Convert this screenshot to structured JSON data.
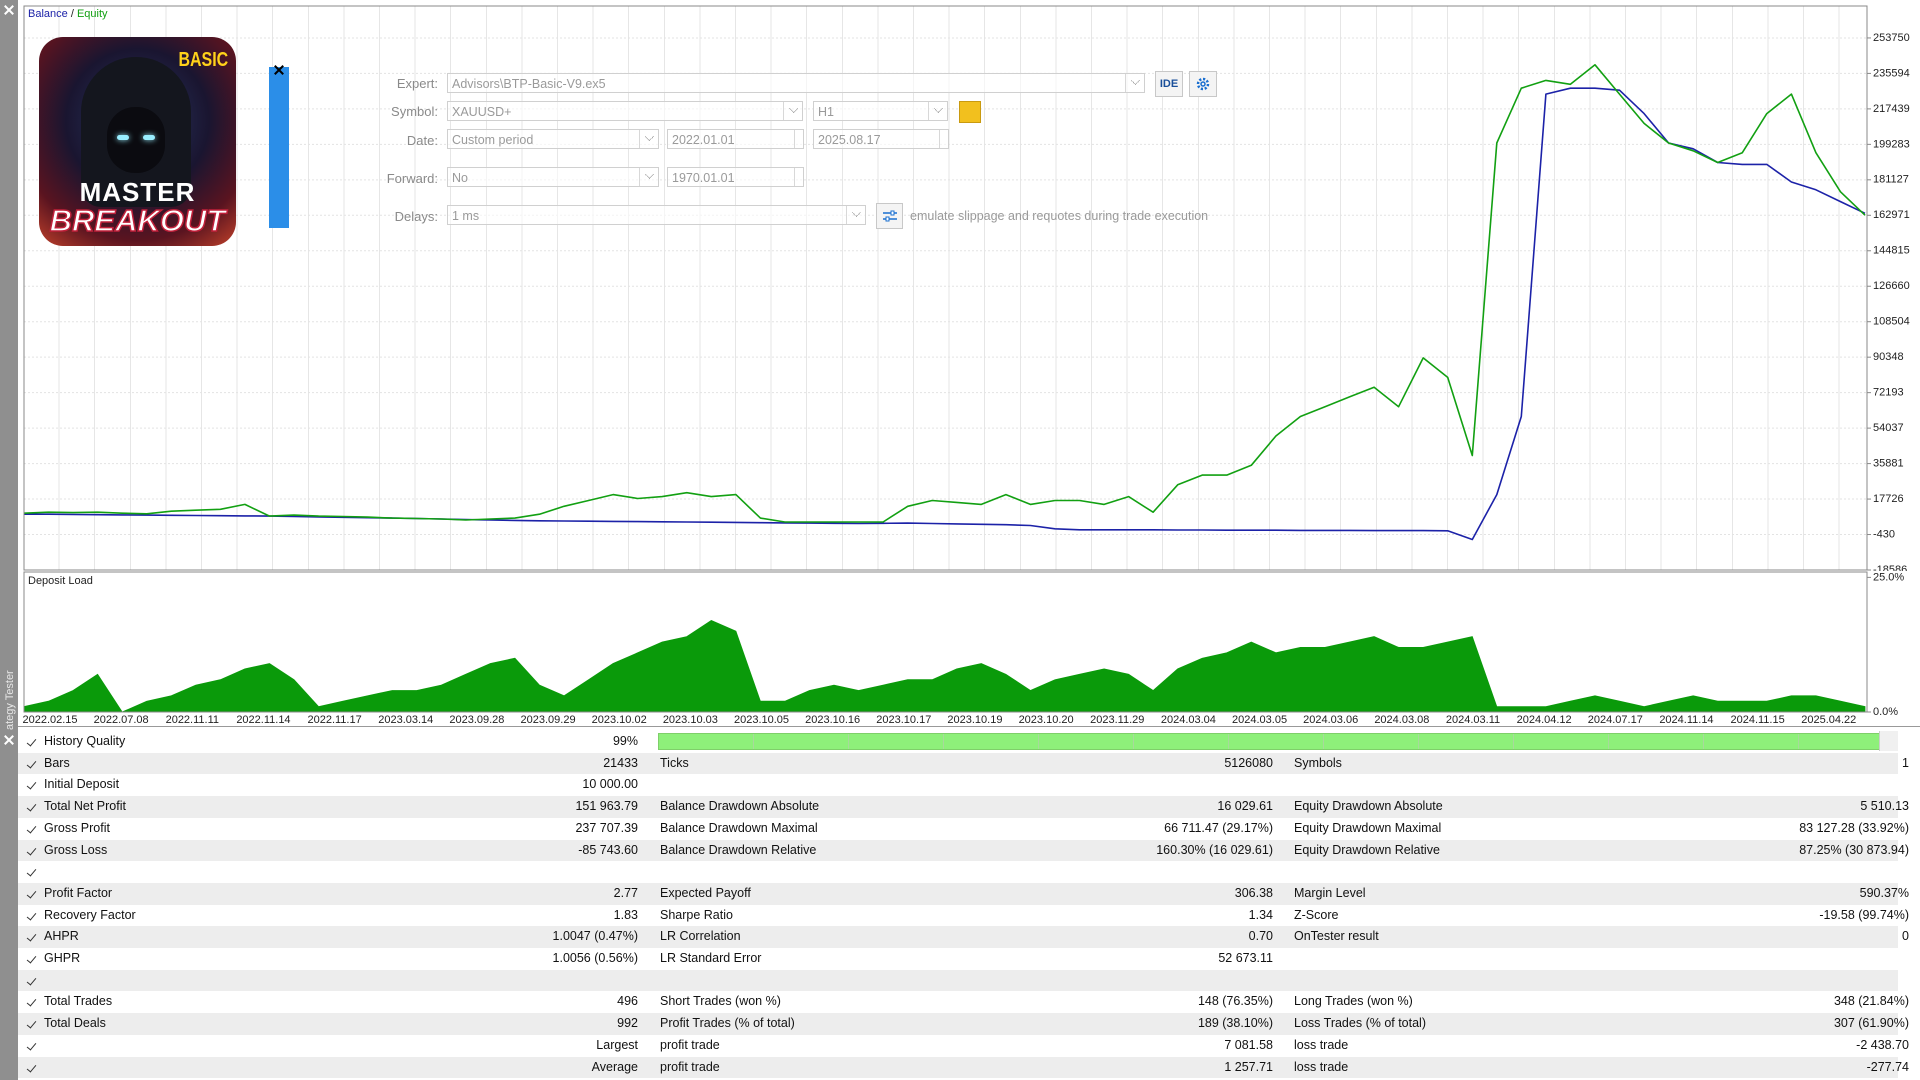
{
  "chart_data": [
    {
      "type": "line",
      "legend_separator": "/",
      "series": [
        {
          "name": "Balance",
          "color": "#1c22a8",
          "values": [
            10000,
            10000,
            9800,
            9700,
            9600,
            9500,
            9400,
            9300,
            9200,
            9100,
            9000,
            8800,
            8600,
            8400,
            8200,
            8000,
            7800,
            7500,
            7200,
            7000,
            6800,
            6600,
            6500,
            6400,
            6300,
            6200,
            6100,
            6000,
            5900,
            5800,
            5600,
            5500,
            5400,
            5300,
            5200,
            5300,
            5400,
            5200,
            5000,
            4800,
            4600,
            4200,
            2500,
            2000,
            2000,
            2000,
            2000,
            1900,
            1900,
            1800,
            1800,
            1800,
            1700,
            1700,
            1700,
            1600,
            1600,
            1600,
            1500,
            -3000,
            20000,
            60000,
            225000,
            228000,
            228000,
            227000,
            215000,
            200000,
            197000,
            190000,
            189000,
            189000,
            180000,
            176000,
            170000,
            164000
          ]
        },
        {
          "name": "Equity",
          "color": "#12a012",
          "values": [
            10500,
            11000,
            10800,
            11000,
            10500,
            10200,
            11500,
            12000,
            12500,
            15000,
            9000,
            9500,
            9000,
            8800,
            8500,
            8000,
            7800,
            7500,
            7000,
            7500,
            8000,
            10000,
            14000,
            17000,
            20000,
            18000,
            19000,
            21000,
            19000,
            20000,
            8000,
            6000,
            6000,
            6000,
            6000,
            6000,
            14000,
            17000,
            16000,
            15000,
            20000,
            15000,
            17000,
            17000,
            15000,
            19000,
            11000,
            25000,
            30000,
            30000,
            35000,
            50000,
            60000,
            65000,
            70000,
            75000,
            65000,
            90000,
            80000,
            40000,
            200000,
            228000,
            232000,
            230000,
            240000,
            225000,
            210000,
            200000,
            196000,
            190000,
            195000,
            215000,
            225000,
            195000,
            175000,
            163000
          ]
        }
      ],
      "ylim": [
        -18586,
        270100
      ],
      "yticks": [
        253750,
        235594,
        217439,
        199283,
        181127,
        162971,
        144815,
        126660,
        108504,
        90348,
        72193,
        54037,
        35881,
        17726,
        -430,
        -18586
      ],
      "grid": true
    },
    {
      "type": "area",
      "title": "Deposit Load",
      "color": "#0a9a0a",
      "values": [
        1,
        2,
        4,
        7,
        0,
        2,
        3,
        5,
        6,
        8,
        9,
        6,
        1,
        2,
        3,
        4,
        4,
        5,
        7,
        9,
        10,
        5,
        3,
        6,
        9,
        11,
        13,
        14,
        17,
        15,
        2,
        2,
        4,
        5,
        4,
        5,
        6,
        6,
        8,
        9,
        7,
        4,
        6,
        7,
        8,
        7,
        4,
        8,
        10,
        11,
        13,
        11,
        12,
        12,
        13,
        14,
        12,
        12,
        13,
        14,
        1,
        1,
        1,
        2,
        3,
        2,
        1,
        2,
        3,
        2,
        2,
        2,
        3,
        3,
        2,
        1
      ],
      "ylim": [
        0,
        26
      ],
      "yticks": [
        {
          "value": 25,
          "label": "25.0%"
        },
        {
          "value": 0,
          "label": "0.0%"
        }
      ],
      "xtick_labels": [
        "2022.02.15",
        "2022.07.08",
        "2022.11.11",
        "2022.11.14",
        "2022.11.17",
        "2023.03.14",
        "2023.09.28",
        "2023.09.29",
        "2023.10.02",
        "2023.10.03",
        "2023.10.05",
        "2023.10.16",
        "2023.10.17",
        "2023.10.19",
        "2023.10.20",
        "2023.11.29",
        "2024.03.04",
        "2024.03.05",
        "2024.03.06",
        "2024.03.08",
        "2024.03.11",
        "2024.04.12",
        "2024.07.17",
        "2024.11.14",
        "2024.11.15",
        "2025.04.22"
      ]
    }
  ],
  "sidebar": "ategy Tester",
  "logo": {
    "badge": "BASIC",
    "line1": "MASTER",
    "line2": "BREAKOUT"
  },
  "settings": {
    "expert": {
      "label": "Expert:",
      "value": "Advisors\\BTP-Basic-V9.ex5"
    },
    "ide_button": "IDE",
    "symbol": {
      "label": "Symbol:",
      "value": "XAUUSD+",
      "period": "H1"
    },
    "date": {
      "label": "Date:",
      "mode": "Custom period",
      "from": "2022.01.01",
      "to": "2025.08.17"
    },
    "forward": {
      "label": "Forward:",
      "mode": "No",
      "date": "1970.01.01"
    },
    "delays": {
      "label": "Delays:",
      "value": "1 ms",
      "note": "emulate slippage and requotes during trade execution"
    }
  },
  "table": {
    "rows": [
      [
        "History Quality",
        "99%"
      ],
      [
        "Bars",
        "21433",
        "Ticks",
        "5126080",
        "Symbols",
        "1"
      ],
      [
        "Initial Deposit",
        "10 000.00"
      ],
      [
        "Total Net Profit",
        "151 963.79",
        "Balance Drawdown Absolute",
        "16 029.61",
        "Equity Drawdown Absolute",
        "5 510.13"
      ],
      [
        "Gross Profit",
        "237 707.39",
        "Balance Drawdown Maximal",
        "66 711.47 (29.17%)",
        "Equity Drawdown Maximal",
        "83 127.28 (33.92%)"
      ],
      [
        "Gross Loss",
        "-85 743.60",
        "Balance Drawdown Relative",
        "160.30% (16 029.61)",
        "Equity Drawdown Relative",
        "87.25% (30 873.94)"
      ],
      [],
      [
        "Profit Factor",
        "2.77",
        "Expected Payoff",
        "306.38",
        "Margin Level",
        "590.37%"
      ],
      [
        "Recovery Factor",
        "1.83",
        "Sharpe Ratio",
        "1.34",
        "Z-Score",
        "-19.58 (99.74%)"
      ],
      [
        "AHPR",
        "1.0047 (0.47%)",
        "LR Correlation",
        "0.70",
        "OnTester result",
        "0"
      ],
      [
        "GHPR",
        "1.0056 (0.56%)",
        "LR Standard Error",
        "52 673.11"
      ],
      [],
      [
        "Total Trades",
        "496",
        "Short Trades (won %)",
        "148 (76.35%)",
        "Long Trades (won %)",
        "348 (21.84%)"
      ],
      [
        "Total Deals",
        "992",
        "Profit Trades (% of total)",
        "189 (38.10%)",
        "Loss Trades (% of total)",
        "307 (61.90%)"
      ],
      [
        null,
        "Largest",
        "profit trade",
        "7 081.58",
        "loss trade",
        "-2 438.70"
      ],
      [
        null,
        "Average",
        "profit trade",
        "1 257.71",
        "loss trade",
        "-277.74"
      ]
    ]
  }
}
